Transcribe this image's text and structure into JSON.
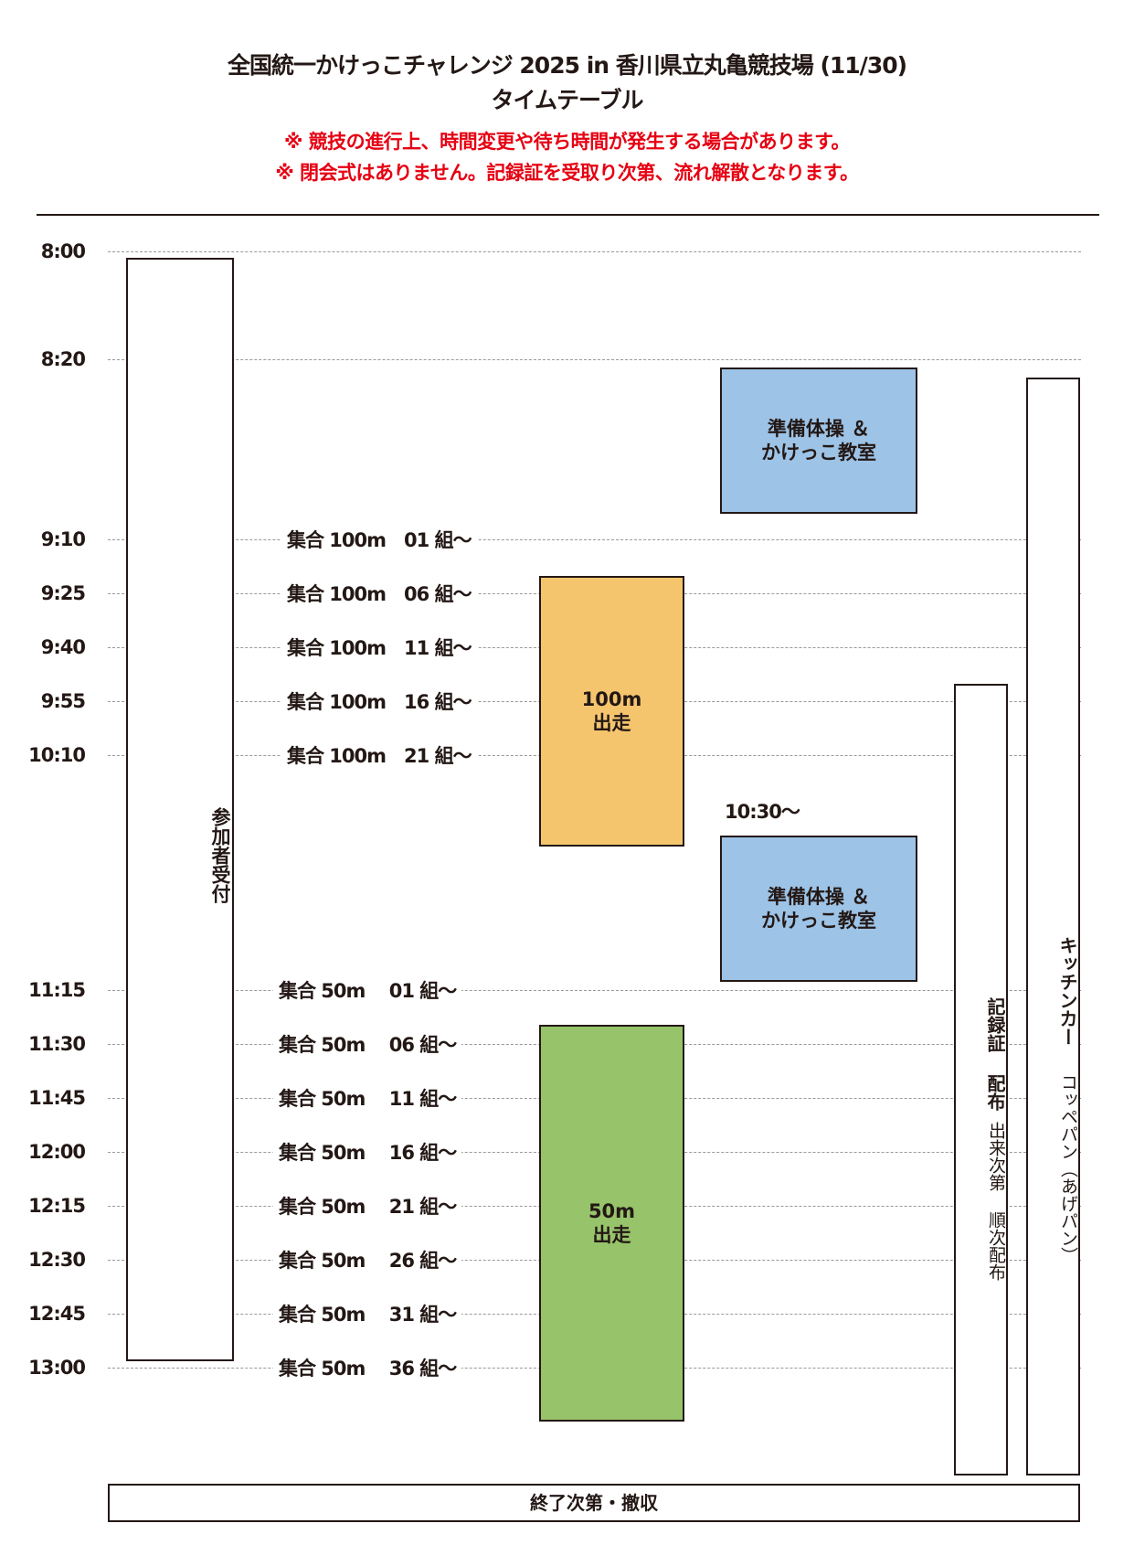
{
  "header": {
    "title": "全国統一かけっこチャレンジ 2025 in 香川県立丸亀競技場 (11/30)",
    "subtitle": "タイムテーブル",
    "notes": [
      "※ 競技の進行上、時間変更や待ち時間が発生する場合があります。",
      "※ 閉会式はありません。記録証を受取り次第、流れ解散となります。"
    ]
  },
  "times": [
    "8:00",
    "8:20",
    "9:10",
    "9:25",
    "9:40",
    "9:55",
    "10:10",
    "11:15",
    "11:30",
    "11:45",
    "12:00",
    "12:15",
    "12:30",
    "12:45",
    "13:00"
  ],
  "assembly_100m": [
    "集合 100m　01 組〜",
    "集合 100m　06 組〜",
    "集合 100m　11 組〜",
    "集合 100m　16 組〜",
    "集合 100m　21 組〜"
  ],
  "assembly_50m": [
    "集合 50m　 01 組〜",
    "集合 50m　 06 組〜",
    "集合 50m　 11 組〜",
    "集合 50m　 16 組〜",
    "集合 50m　 21 組〜",
    "集合 50m　 26 組〜",
    "集合 50m　 31 組〜",
    "集合 50m　 36 組〜"
  ],
  "blocks": {
    "reception": "参加者受付",
    "warmup1": {
      "line1": "準備体操 ＆",
      "line2": "かけっこ教室"
    },
    "warmup2_time": "10:30〜",
    "warmup2": {
      "line1": "準備体操 ＆",
      "line2": "かけっこ教室"
    },
    "run100": {
      "line1": "100m",
      "line2": "出走"
    },
    "run50": {
      "line1": "50m",
      "line2": "出走"
    },
    "certificate": {
      "title": "記録証 配布",
      "detail": "出来次第 順次配布"
    },
    "kitchen": {
      "title": "キッチンカー",
      "detail": "コッペパン（あげパン）"
    },
    "end": "終了次第・撤収"
  },
  "colors": {
    "warmup": "#9dc3e6",
    "run100": "#f5c56e",
    "run50": "#97c36a",
    "notes": "#e60012"
  }
}
